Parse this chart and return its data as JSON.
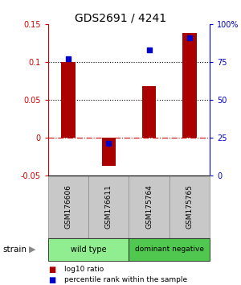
{
  "title": "GDS2691 / 4241",
  "samples": [
    "GSM176606",
    "GSM176611",
    "GSM175764",
    "GSM175765"
  ],
  "log10_ratio": [
    0.1,
    -0.038,
    0.068,
    0.138
  ],
  "percentile_rank": [
    77,
    21,
    83,
    91
  ],
  "groups": [
    {
      "label": "wild type",
      "color": "#90EE90",
      "samples": [
        0,
        1
      ]
    },
    {
      "label": "dominant negative",
      "color": "#50C850",
      "samples": [
        2,
        3
      ]
    }
  ],
  "bar_color": "#AA0000",
  "dot_color": "#0000CC",
  "ylim_left": [
    -0.05,
    0.15
  ],
  "ylim_right": [
    0,
    100
  ],
  "yticks_left": [
    -0.05,
    0,
    0.05,
    0.1,
    0.15
  ],
  "yticks_right": [
    0,
    25,
    50,
    75,
    100
  ],
  "ytick_labels_left": [
    "-0.05",
    "0",
    "0.05",
    "0.1",
    "0.15"
  ],
  "ytick_labels_right": [
    "0",
    "25",
    "50",
    "75",
    "100%"
  ],
  "hlines": [
    0.0,
    0.05,
    0.1
  ],
  "hline_styles": [
    "dashdot",
    "dotted",
    "dotted"
  ],
  "hline_colors": [
    "#CC0000",
    "black",
    "black"
  ],
  "legend_items": [
    {
      "color": "#AA0000",
      "label": "log10 ratio"
    },
    {
      "color": "#0000CC",
      "label": "percentile rank within the sample"
    }
  ],
  "left_axis_color": "#CC0000",
  "right_axis_color": "#0000CC",
  "background_color": "#ffffff",
  "bar_width": 0.35,
  "sample_box_color": "#C8C8C8",
  "sample_box_edge": "#888888"
}
